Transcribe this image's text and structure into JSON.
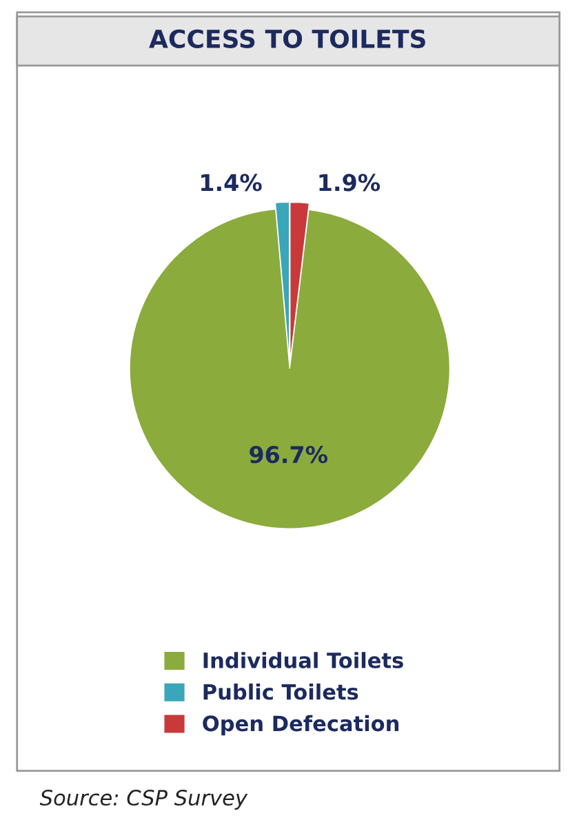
{
  "chart_data": {
    "type": "pie",
    "title": "ACCESS TO TOILETS",
    "categories": [
      "Individual Toilets",
      "Public Toilets",
      "Open Defecation"
    ],
    "values": [
      96.7,
      1.4,
      1.9
    ],
    "colors": [
      "#8bab3c",
      "#3aa6b9",
      "#c8393a"
    ],
    "value_labels": [
      "96.7%",
      "1.4%",
      "1.9%"
    ],
    "legend": "bottom",
    "annotations": [
      "Source: CSP Survey"
    ]
  }
}
